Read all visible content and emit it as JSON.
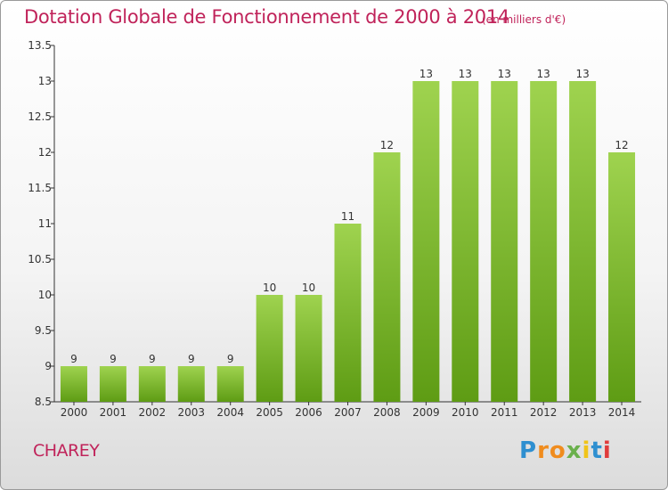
{
  "title": "Dotation Globale de Fonctionnement de 2000 à 2014",
  "subtitle": "(en milliers d'€)",
  "location": "CHAREY",
  "logo": {
    "letters": [
      "P",
      "r",
      "o",
      "x",
      "i",
      "t",
      "i"
    ],
    "colors": [
      "#2e8fd0",
      "#f08c1e",
      "#f08c1e",
      "#6ab04c",
      "#f0c419",
      "#2e8fd0",
      "#e03c3c"
    ]
  },
  "colors": {
    "accent": "#c0235a",
    "bar_top": "#9fd34f",
    "bar_bottom": "#5e9c14"
  },
  "chart_data": {
    "type": "bar",
    "categories": [
      "2000",
      "2001",
      "2002",
      "2003",
      "2004",
      "2005",
      "2006",
      "2007",
      "2008",
      "2009",
      "2010",
      "2011",
      "2012",
      "2013",
      "2014"
    ],
    "values": [
      9,
      9,
      9,
      9,
      9,
      10,
      10,
      11,
      12,
      13,
      13,
      13,
      13,
      13,
      12
    ],
    "data_labels": [
      "9",
      "9",
      "9",
      "9",
      "9",
      "10",
      "10",
      "11",
      "12",
      "13",
      "13",
      "13",
      "13",
      "13",
      "12"
    ],
    "ylim": [
      8.5,
      13.5
    ],
    "yticks": [
      "8.5",
      "9",
      "9.5",
      "10",
      "10.5",
      "11",
      "11.5",
      "12",
      "12.5",
      "13",
      "13.5"
    ],
    "ytick_values": [
      8.5,
      9,
      9.5,
      10,
      10.5,
      11,
      11.5,
      12,
      12.5,
      13,
      13.5
    ],
    "grid": false,
    "xlabel": "",
    "ylabel": ""
  }
}
